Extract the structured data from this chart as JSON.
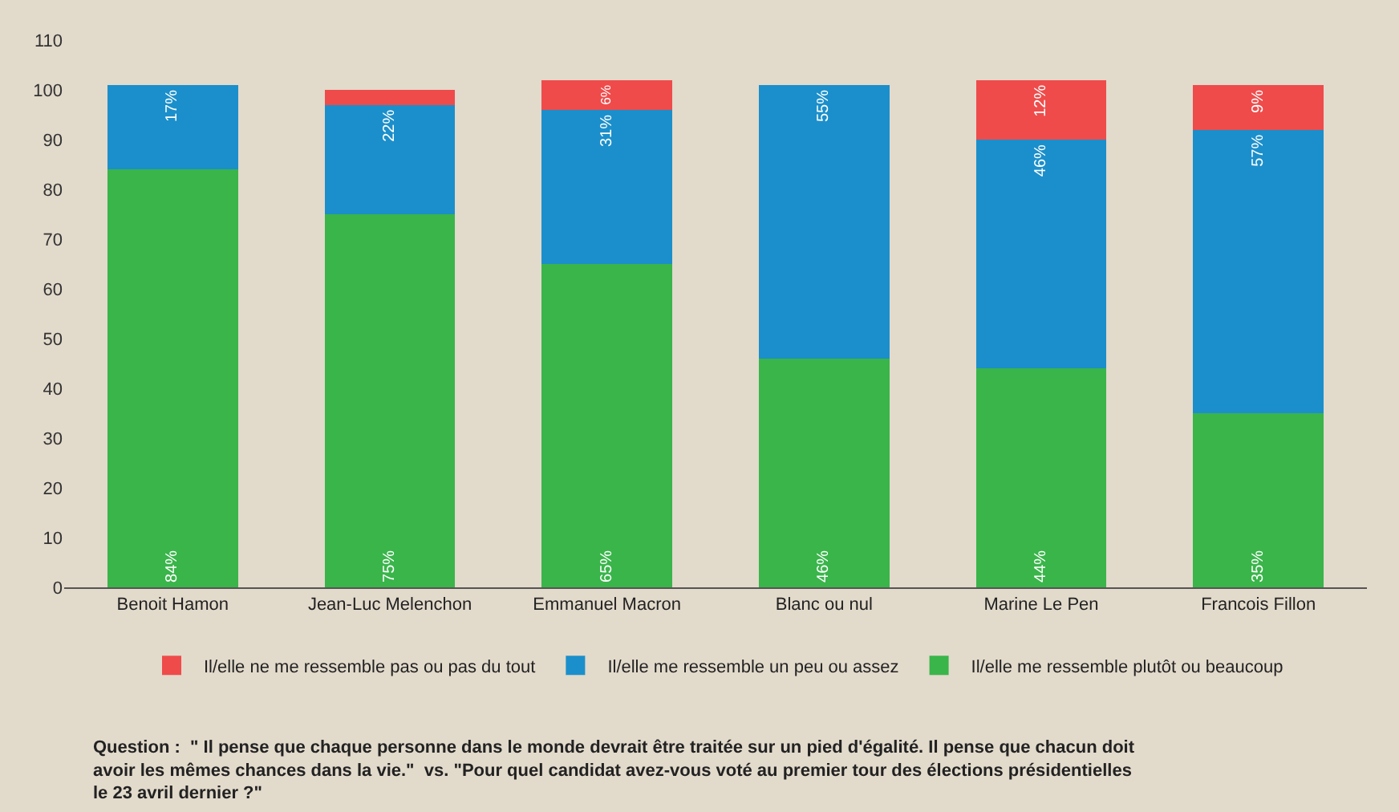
{
  "chart_data": {
    "type": "bar",
    "stacked": true,
    "categories": [
      "Benoit Hamon",
      "Jean-Luc Melenchon",
      "Emmanuel Macron",
      "Blanc ou nul",
      "Marine Le Pen",
      "Francois Fillon"
    ],
    "series": [
      {
        "name": "Il/elle me ressemble plutôt ou beaucoup",
        "color": "#39b54a",
        "values": [
          84,
          75,
          65,
          46,
          44,
          35
        ],
        "value_labels": [
          "84%",
          "75%",
          "65%",
          "46%",
          "44%",
          "35%"
        ]
      },
      {
        "name": "Il/elle me ressemble un peu ou assez",
        "color": "#1b8fcb",
        "values": [
          17,
          22,
          31,
          55,
          46,
          57
        ],
        "value_labels": [
          "17%",
          "22%",
          "31%",
          "55%",
          "46%",
          "57%"
        ]
      },
      {
        "name": "Il/elle ne me ressemble pas ou pas du tout",
        "color": "#ef4b4b",
        "values": [
          null,
          3,
          6,
          null,
          12,
          9
        ],
        "value_labels": [
          null,
          null,
          "6%",
          null,
          "12%",
          "9%"
        ]
      }
    ],
    "ylim": [
      0,
      110
    ],
    "yticks": [
      0,
      10,
      20,
      30,
      40,
      50,
      60,
      70,
      80,
      90,
      100,
      110
    ],
    "grid": false,
    "legend": "bottom",
    "annotations": [
      "Question :  \" Il pense que chaque personne dans le monde devrait être traitée sur un pied d'égalité. Il pense que chacun doit avoir les mêmes chances dans la vie.\"  vs. \"Pour quel candidat avez-vous voté au premier tour des élections présidentielles le 23 avril dernier ?\""
    ]
  }
}
